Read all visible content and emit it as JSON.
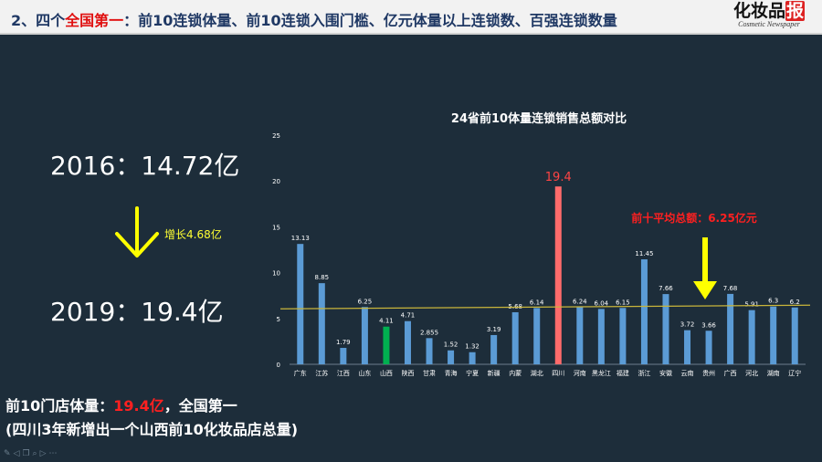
{
  "header": {
    "title_prefix": "2、四个",
    "title_highlight": "全国第一",
    "title_rest": "：前10连锁体量、前10连锁入围门槛、亿元体量以上连锁数、百强连锁数量",
    "logo_text": "化妆品",
    "logo_red_char": "报",
    "logo_sub": "Cosmetic Newspaper"
  },
  "left_panel": {
    "year_2016": "2016：14.72亿",
    "year_2019": "2019：19.4亿",
    "growth": "增长4.68亿"
  },
  "summary": {
    "line1_prefix": "前10门店体量：",
    "line1_highlight": "19.4亿",
    "line1_suffix": "，全国第一",
    "line2": "(四川3年新增出一个山西前10化妆品店总量)"
  },
  "colors": {
    "background": "#1d2d3a",
    "bar_default": "#5b9bd5",
    "bar_sichuan": "#ff6b6b",
    "bar_shanxi": "#00b050",
    "average_line": "#c9b53a",
    "annotation_red": "#ff2020",
    "arrow_yellow": "#ffff00"
  },
  "chart_data": {
    "type": "bar",
    "title": "24省前10体量连锁销售总额对比",
    "categories": [
      "广东",
      "江苏",
      "江西",
      "山东",
      "山西",
      "陕西",
      "甘肃",
      "青海",
      "宁夏",
      "新疆",
      "内蒙",
      "湖北",
      "四川",
      "河南",
      "黑龙江",
      "福建",
      "浙江",
      "安徽",
      "云南",
      "贵州",
      "广西",
      "河北",
      "湖南",
      "辽宁"
    ],
    "values": [
      13.13,
      8.85,
      1.79,
      6.25,
      4.11,
      4.71,
      2.855,
      1.52,
      1.32,
      3.19,
      5.68,
      6.14,
      19.4,
      6.24,
      6.04,
      6.15,
      11.45,
      7.66,
      3.72,
      3.66,
      7.68,
      5.91,
      6.3,
      6.2
    ],
    "value_labels": [
      "13.13",
      "8.85",
      "1.79",
      "6.25",
      "4.11",
      "4.71",
      "2.855",
      "1.52",
      "1.32",
      "3.19",
      "5.68",
      "6.14",
      "19.4",
      "6.24",
      "6.04",
      "6.15",
      "11.45",
      "7.66",
      "3.72",
      "3.66",
      "7.68",
      "5.91",
      "6.3",
      "6.2"
    ],
    "highlight": {
      "四川": "#ff6b6b",
      "山西": "#00b050"
    },
    "ylim": [
      0,
      25
    ],
    "yticks": [
      "0",
      "5",
      "10",
      "15",
      "20",
      "25"
    ],
    "average": 6.25,
    "annotation": "前十平均总额：6.25亿元",
    "grid": false
  }
}
